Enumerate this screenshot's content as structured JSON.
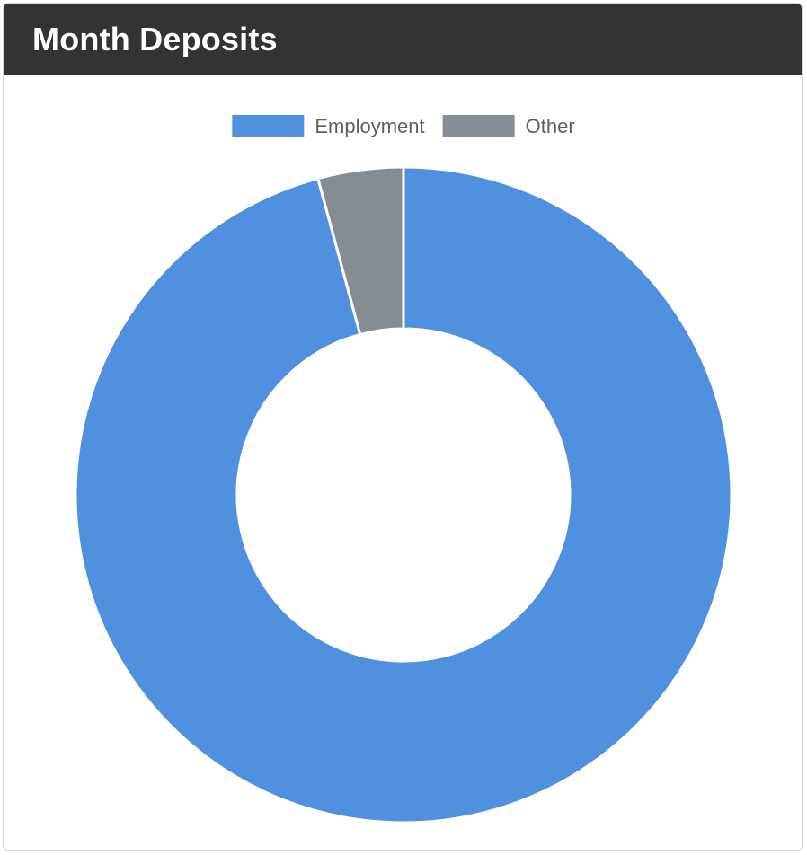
{
  "header": {
    "title": "Month Deposits"
  },
  "colors": {
    "header_bg": "#333333",
    "header_text": "#ffffff",
    "employment": "#4f91df",
    "other": "#858c93",
    "legend_text": "#5f5f5f"
  },
  "chart_data": {
    "type": "pie",
    "title": "",
    "categories": [
      "Employment",
      "Other"
    ],
    "values": [
      95.8,
      4.2
    ],
    "legend": {
      "position": "top",
      "entries": [
        "Employment",
        "Other"
      ]
    },
    "donut": true,
    "labels_shown": false
  }
}
